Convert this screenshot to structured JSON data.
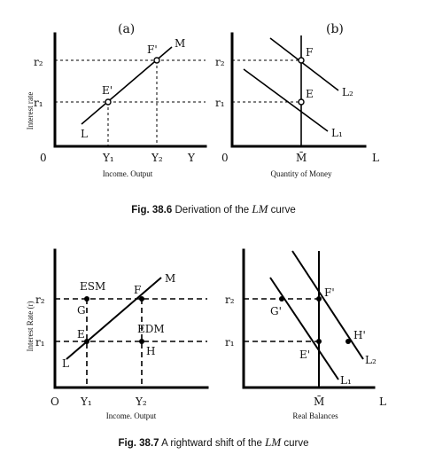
{
  "fig1": {
    "panel_a": {
      "label": "(a)",
      "ylabel": "Interest rate",
      "xlabel": "Income. Output",
      "origin": "0",
      "r2": "r₂",
      "r1": "r₁",
      "y1": "Y₁",
      "y2": "Y₂",
      "y_axis_end": "Y",
      "curve_start": "L",
      "curve_end": "M",
      "point_low": "E'",
      "point_high": "F'"
    },
    "panel_b": {
      "label": "(b)",
      "xlabel": "Quantity of Money",
      "origin": "0",
      "r2": "r₂",
      "r1": "r₁",
      "m_bar": "M̄",
      "axis_end": "L",
      "point_high": "F",
      "point_low": "E",
      "curve_upper": "L₂",
      "curve_lower": "L₁"
    },
    "caption_prefix": "Fig. 38.6",
    "caption_text": " Derivation of the ",
    "caption_italic": "LM",
    "caption_suffix": " curve"
  },
  "fig2": {
    "panel_a": {
      "ylabel": "Interest Rate (r)",
      "xlabel": "Income. Output",
      "origin": "O",
      "r2": "r₂",
      "r1": "r₁",
      "y1": "Y₁",
      "y2": "Y₂",
      "curve_start": "L",
      "curve_end": "M",
      "esm": "ESM",
      "edm": "EDM",
      "point_g": "G",
      "point_e": "E",
      "point_f": "F",
      "point_h": "H"
    },
    "panel_b": {
      "xlabel": "Real Balances",
      "r2": "r₂",
      "r1": "r₁",
      "m_bar": "M̄",
      "axis_end": "L",
      "point_g": "G'",
      "point_f": "F'",
      "point_e": "E'",
      "point_h": "H'",
      "curve_upper": "L₂",
      "curve_lower": "L₁"
    },
    "caption_prefix": "Fig. 38.7",
    "caption_text": " A rightward shift of the ",
    "caption_italic": "LM",
    "caption_suffix": " curve"
  }
}
